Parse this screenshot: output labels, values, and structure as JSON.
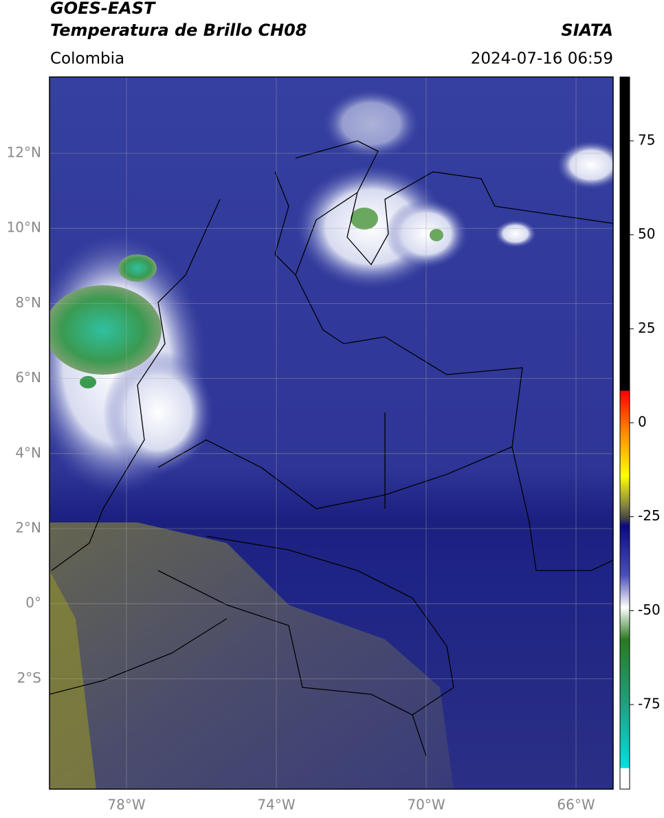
{
  "header": {
    "satellite": "GOES-EAST",
    "product": "Temperatura de Brillo CH08",
    "region": "Colombia",
    "source": "SIATA",
    "datetime": "2024-07-16 06:59"
  },
  "map": {
    "lat_labels": [
      "12°N",
      "10°N",
      "8°N",
      "6°N",
      "4°N",
      "2°N",
      "0°",
      "2°S"
    ],
    "lon_labels": [
      "78°W",
      "74°W",
      "70°W",
      "66°W"
    ]
  },
  "colorbar": {
    "clim": [
      -97.5,
      92
    ],
    "ticks": [
      75,
      50,
      25,
      0,
      -25,
      -50,
      -75
    ]
  }
}
